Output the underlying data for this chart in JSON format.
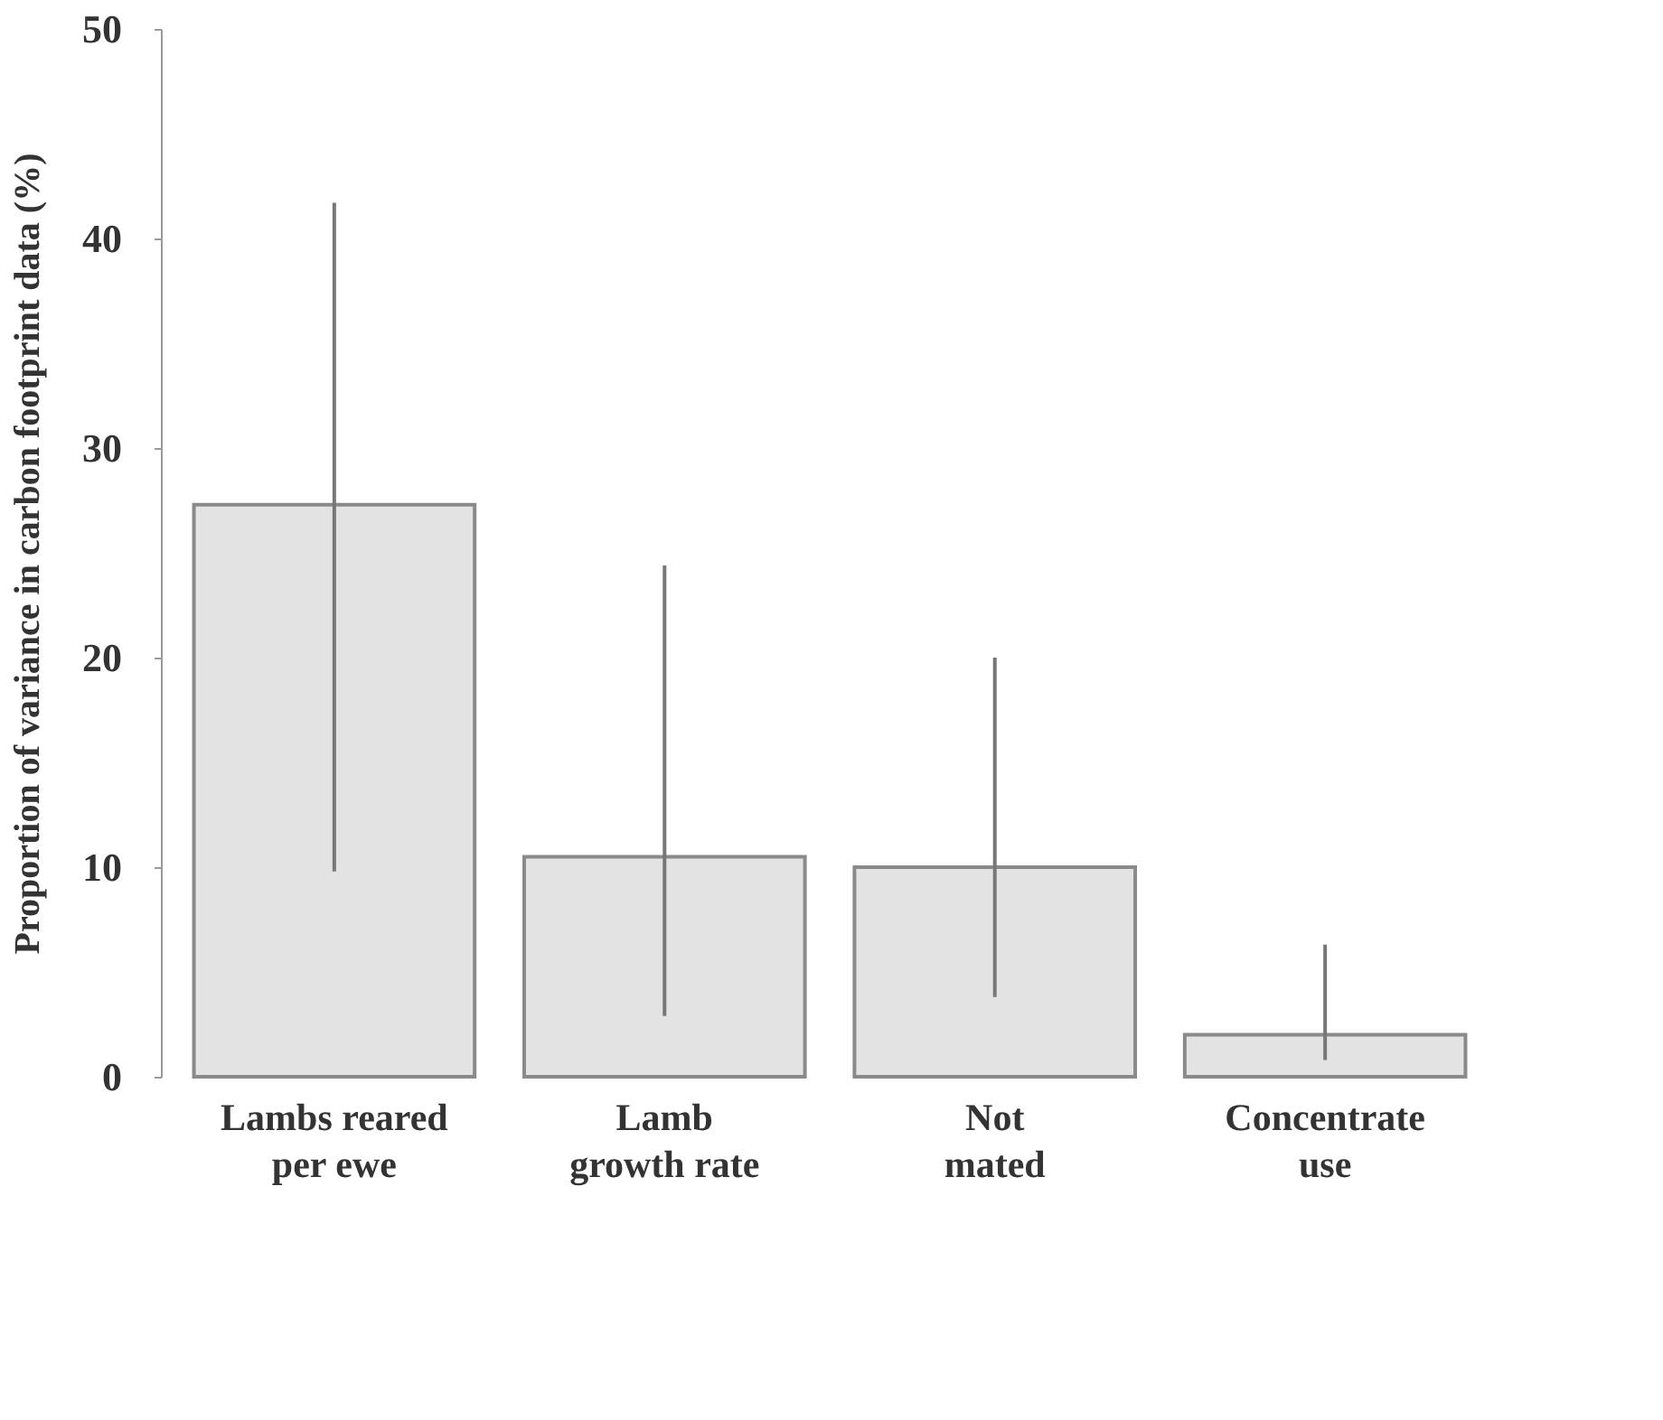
{
  "chart_data": {
    "type": "bar",
    "ylabel": "Proportion of variance in carbon footprint data (%)",
    "categories": [
      "Lambs reared\nper ewe",
      "Lamb\ngrowth rate",
      "Not\nmated",
      "Concentrate\nuse"
    ],
    "values": [
      27.3,
      10.5,
      10.0,
      2.0
    ],
    "errors": [
      [
        9.8,
        41.7
      ],
      [
        2.9,
        24.4
      ],
      [
        3.8,
        20.0
      ],
      [
        0.8,
        6.3
      ]
    ],
    "color": "#e3e3e3",
    "ylim": [
      0,
      50
    ],
    "yticks": [
      0,
      10,
      20,
      30,
      40,
      50
    ],
    "grid": false
  }
}
